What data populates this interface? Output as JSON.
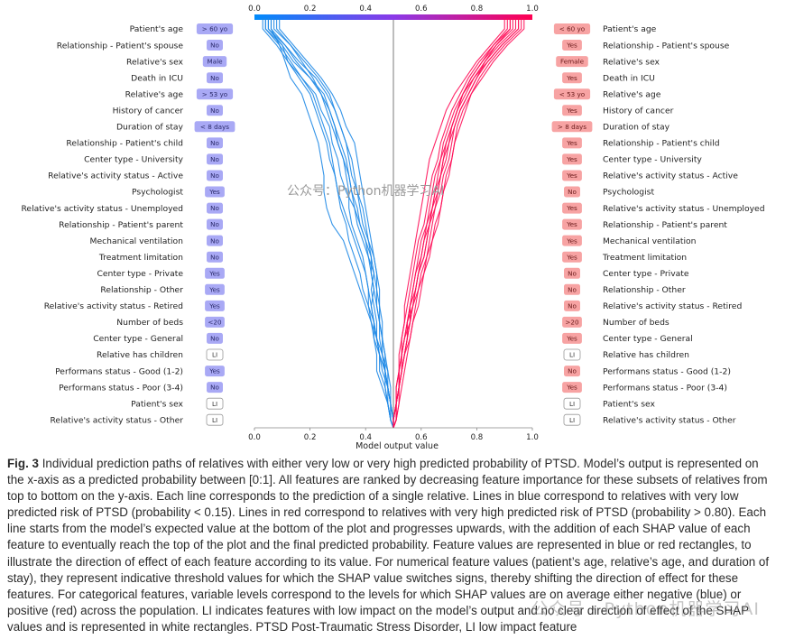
{
  "figure": {
    "axis": {
      "top_ticks": [
        "0.0",
        "0.2",
        "0.4",
        "0.6",
        "0.8",
        "1.0"
      ],
      "bottom_ticks": [
        "0.0",
        "0.2",
        "0.4",
        "0.6",
        "0.8",
        "1.0"
      ],
      "xlabel": "Model output value",
      "range": [
        0,
        1
      ],
      "base_value": 0.5
    },
    "colors": {
      "blue_line": "#1e88e5",
      "red_line": "#ff0d57",
      "blue_badge": "#a9a9f5",
      "red_badge": "#f7a3a3",
      "white_badge_border": "#999999",
      "center_line": "#999999"
    },
    "features": [
      {
        "left_label": "Patient's age",
        "left_value": "> 60 yo",
        "left_color": "blue",
        "right_value": "< 60 yo",
        "right_color": "red",
        "right_label": "Patient's age"
      },
      {
        "left_label": "Relationship - Patient's spouse",
        "left_value": "No",
        "left_color": "blue",
        "right_value": "Yes",
        "right_color": "red",
        "right_label": "Relationship - Patient's spouse"
      },
      {
        "left_label": "Relative's sex",
        "left_value": "Male",
        "left_color": "blue",
        "right_value": "Female",
        "right_color": "red",
        "right_label": "Relative's sex"
      },
      {
        "left_label": "Death in ICU",
        "left_value": "No",
        "left_color": "blue",
        "right_value": "Yes",
        "right_color": "red",
        "right_label": "Death in ICU"
      },
      {
        "left_label": "Relative's age",
        "left_value": "> 53 yo",
        "left_color": "blue",
        "right_value": "< 53 yo",
        "right_color": "red",
        "right_label": "Relative's age"
      },
      {
        "left_label": "History of cancer",
        "left_value": "No",
        "left_color": "blue",
        "right_value": "Yes",
        "right_color": "red",
        "right_label": "History of cancer"
      },
      {
        "left_label": "Duration of stay",
        "left_value": "< 8 days",
        "left_color": "blue",
        "right_value": "> 8 days",
        "right_color": "red",
        "right_label": "Duration of stay"
      },
      {
        "left_label": "Relationship - Patient's child",
        "left_value": "No",
        "left_color": "blue",
        "right_value": "Yes",
        "right_color": "red",
        "right_label": "Relationship - Patient's child"
      },
      {
        "left_label": "Center type - University",
        "left_value": "No",
        "left_color": "blue",
        "right_value": "Yes",
        "right_color": "red",
        "right_label": "Center type - University"
      },
      {
        "left_label": "Relative's activity status - Active",
        "left_value": "No",
        "left_color": "blue",
        "right_value": "Yes",
        "right_color": "red",
        "right_label": "Relative's activity status - Active"
      },
      {
        "left_label": "Psychologist",
        "left_value": "Yes",
        "left_color": "blue",
        "right_value": "No",
        "right_color": "red",
        "right_label": "Psychologist"
      },
      {
        "left_label": "Relative's activity status - Unemployed",
        "left_value": "No",
        "left_color": "blue",
        "right_value": "Yes",
        "right_color": "red",
        "right_label": "Relative's activity status - Unemployed"
      },
      {
        "left_label": "Relationship - Patient's parent",
        "left_value": "No",
        "left_color": "blue",
        "right_value": "Yes",
        "right_color": "red",
        "right_label": "Relationship - Patient's parent"
      },
      {
        "left_label": "Mechanical ventilation",
        "left_value": "No",
        "left_color": "blue",
        "right_value": "Yes",
        "right_color": "red",
        "right_label": "Mechanical ventilation"
      },
      {
        "left_label": "Treatment limitation",
        "left_value": "No",
        "left_color": "blue",
        "right_value": "Yes",
        "right_color": "red",
        "right_label": "Treatment limitation"
      },
      {
        "left_label": "Center type - Private",
        "left_value": "Yes",
        "left_color": "blue",
        "right_value": "No",
        "right_color": "red",
        "right_label": "Center type - Private"
      },
      {
        "left_label": "Relationship - Other",
        "left_value": "Yes",
        "left_color": "blue",
        "right_value": "No",
        "right_color": "red",
        "right_label": "Relationship - Other"
      },
      {
        "left_label": "Relative's activity status - Retired",
        "left_value": "Yes",
        "left_color": "blue",
        "right_value": "No",
        "right_color": "red",
        "right_label": "Relative's activity status - Retired"
      },
      {
        "left_label": "Number of beds",
        "left_value": "<20",
        "left_color": "blue",
        "right_value": ">20",
        "right_color": "red",
        "right_label": "Number of beds"
      },
      {
        "left_label": "Center type - General",
        "left_value": "No",
        "left_color": "blue",
        "right_value": "Yes",
        "right_color": "red",
        "right_label": "Center type - General"
      },
      {
        "left_label": "Relative has children",
        "left_value": "LI",
        "left_color": "white",
        "right_value": "LI",
        "right_color": "white",
        "right_label": "Relative has children"
      },
      {
        "left_label": "Performans status - Good (1-2)",
        "left_value": "Yes",
        "left_color": "blue",
        "right_value": "No",
        "right_color": "red",
        "right_label": "Performans status - Good (1-2)"
      },
      {
        "left_label": "Performans status - Poor (3-4)",
        "left_value": "No",
        "left_color": "blue",
        "right_value": "Yes",
        "right_color": "red",
        "right_label": "Performans status - Poor (3-4)"
      },
      {
        "left_label": "Patient's sex",
        "left_value": "LI",
        "left_color": "white",
        "right_value": "LI",
        "right_color": "white",
        "right_label": "Patient's sex"
      },
      {
        "left_label": "Relative's activity status - Other",
        "left_value": "LI",
        "left_color": "white",
        "right_value": "LI",
        "right_color": "white",
        "right_label": "Relative's activity status - Other"
      }
    ],
    "watermark": "公众号：Python机器学习AI"
  },
  "chart_data": {
    "type": "line",
    "xlabel": "Model output value",
    "xlim": [
      0,
      1
    ],
    "base_value": 0.5,
    "y_order": "bottom-to-top",
    "note_feature_order": "paths start at the base value below the last feature and progress upward through the features list (last to first)",
    "series": [
      {
        "color": "blue",
        "values": [
          0.5,
          0.49,
          0.48,
          0.47,
          0.45,
          0.45,
          0.44,
          0.44,
          0.43,
          0.42,
          0.43,
          0.41,
          0.4,
          0.38,
          0.37,
          0.35,
          0.34,
          0.33,
          0.31,
          0.29,
          0.27,
          0.25,
          0.2,
          0.14,
          0.1,
          0.04
        ]
      },
      {
        "color": "blue",
        "values": [
          0.5,
          0.5,
          0.49,
          0.48,
          0.47,
          0.47,
          0.46,
          0.45,
          0.45,
          0.44,
          0.44,
          0.43,
          0.41,
          0.39,
          0.38,
          0.37,
          0.36,
          0.35,
          0.33,
          0.31,
          0.29,
          0.26,
          0.22,
          0.16,
          0.11,
          0.05
        ]
      },
      {
        "color": "blue",
        "values": [
          0.5,
          0.49,
          0.48,
          0.46,
          0.44,
          0.44,
          0.43,
          0.43,
          0.42,
          0.43,
          0.42,
          0.42,
          0.4,
          0.38,
          0.36,
          0.33,
          0.31,
          0.3,
          0.28,
          0.27,
          0.24,
          0.22,
          0.17,
          0.12,
          0.08,
          0.03
        ]
      },
      {
        "color": "blue",
        "values": [
          0.5,
          0.5,
          0.49,
          0.49,
          0.48,
          0.46,
          0.44,
          0.42,
          0.4,
          0.38,
          0.36,
          0.34,
          0.32,
          0.28,
          0.26,
          0.25,
          0.25,
          0.24,
          0.23,
          0.21,
          0.19,
          0.17,
          0.13,
          0.11,
          0.09,
          0.06
        ]
      },
      {
        "color": "blue",
        "values": [
          0.5,
          0.49,
          0.48,
          0.48,
          0.47,
          0.45,
          0.43,
          0.42,
          0.41,
          0.41,
          0.4,
          0.39,
          0.37,
          0.35,
          0.34,
          0.34,
          0.33,
          0.32,
          0.3,
          0.29,
          0.27,
          0.24,
          0.2,
          0.15,
          0.11,
          0.06
        ]
      },
      {
        "color": "blue",
        "values": [
          0.5,
          0.49,
          0.49,
          0.48,
          0.47,
          0.46,
          0.46,
          0.45,
          0.44,
          0.44,
          0.43,
          0.42,
          0.41,
          0.4,
          0.39,
          0.37,
          0.35,
          0.34,
          0.33,
          0.31,
          0.29,
          0.27,
          0.23,
          0.18,
          0.13,
          0.07
        ]
      },
      {
        "color": "blue",
        "values": [
          0.5,
          0.5,
          0.49,
          0.48,
          0.46,
          0.45,
          0.44,
          0.43,
          0.42,
          0.41,
          0.4,
          0.38,
          0.36,
          0.34,
          0.32,
          0.3,
          0.29,
          0.28,
          0.27,
          0.25,
          0.23,
          0.21,
          0.17,
          0.13,
          0.09,
          0.04
        ]
      },
      {
        "color": "blue",
        "values": [
          0.5,
          0.49,
          0.48,
          0.47,
          0.47,
          0.46,
          0.45,
          0.45,
          0.44,
          0.43,
          0.42,
          0.41,
          0.39,
          0.37,
          0.36,
          0.35,
          0.34,
          0.32,
          0.3,
          0.28,
          0.26,
          0.24,
          0.21,
          0.17,
          0.13,
          0.08
        ]
      },
      {
        "color": "blue",
        "values": [
          0.5,
          0.49,
          0.49,
          0.48,
          0.47,
          0.45,
          0.44,
          0.43,
          0.41,
          0.39,
          0.38,
          0.36,
          0.34,
          0.33,
          0.31,
          0.3,
          0.29,
          0.27,
          0.26,
          0.24,
          0.22,
          0.2,
          0.16,
          0.12,
          0.1,
          0.05
        ]
      },
      {
        "color": "blue",
        "values": [
          0.5,
          0.5,
          0.49,
          0.48,
          0.48,
          0.47,
          0.46,
          0.46,
          0.45,
          0.45,
          0.44,
          0.43,
          0.42,
          0.41,
          0.4,
          0.39,
          0.38,
          0.37,
          0.36,
          0.33,
          0.31,
          0.28,
          0.24,
          0.19,
          0.14,
          0.09
        ]
      },
      {
        "color": "red",
        "values": [
          0.5,
          0.51,
          0.51,
          0.52,
          0.53,
          0.54,
          0.55,
          0.55,
          0.56,
          0.58,
          0.59,
          0.61,
          0.62,
          0.63,
          0.65,
          0.66,
          0.67,
          0.69,
          0.7,
          0.71,
          0.73,
          0.76,
          0.79,
          0.83,
          0.88,
          0.94
        ]
      },
      {
        "color": "red",
        "values": [
          0.5,
          0.5,
          0.51,
          0.52,
          0.52,
          0.53,
          0.54,
          0.55,
          0.57,
          0.59,
          0.6,
          0.62,
          0.63,
          0.64,
          0.65,
          0.67,
          0.68,
          0.7,
          0.71,
          0.72,
          0.74,
          0.77,
          0.8,
          0.84,
          0.89,
          0.95
        ]
      },
      {
        "color": "red",
        "values": [
          0.5,
          0.51,
          0.52,
          0.52,
          0.53,
          0.54,
          0.56,
          0.57,
          0.58,
          0.59,
          0.61,
          0.62,
          0.64,
          0.65,
          0.67,
          0.68,
          0.69,
          0.71,
          0.72,
          0.73,
          0.75,
          0.78,
          0.81,
          0.85,
          0.9,
          0.96
        ]
      },
      {
        "color": "red",
        "values": [
          0.5,
          0.5,
          0.51,
          0.51,
          0.52,
          0.53,
          0.53,
          0.54,
          0.55,
          0.56,
          0.57,
          0.58,
          0.59,
          0.61,
          0.62,
          0.63,
          0.64,
          0.66,
          0.67,
          0.69,
          0.71,
          0.74,
          0.77,
          0.81,
          0.86,
          0.92
        ]
      },
      {
        "color": "red",
        "values": [
          0.5,
          0.51,
          0.51,
          0.52,
          0.53,
          0.53,
          0.54,
          0.56,
          0.57,
          0.58,
          0.59,
          0.61,
          0.62,
          0.63,
          0.64,
          0.65,
          0.67,
          0.68,
          0.7,
          0.72,
          0.74,
          0.77,
          0.8,
          0.83,
          0.87,
          0.93
        ]
      },
      {
        "color": "red",
        "values": [
          0.5,
          0.5,
          0.51,
          0.52,
          0.53,
          0.54,
          0.55,
          0.56,
          0.56,
          0.57,
          0.58,
          0.6,
          0.61,
          0.62,
          0.64,
          0.66,
          0.67,
          0.68,
          0.69,
          0.71,
          0.73,
          0.75,
          0.78,
          0.82,
          0.86,
          0.91
        ]
      },
      {
        "color": "red",
        "values": [
          0.5,
          0.51,
          0.52,
          0.53,
          0.54,
          0.55,
          0.56,
          0.57,
          0.59,
          0.6,
          0.61,
          0.63,
          0.64,
          0.66,
          0.67,
          0.68,
          0.7,
          0.71,
          0.72,
          0.74,
          0.76,
          0.78,
          0.82,
          0.86,
          0.91,
          0.97
        ]
      },
      {
        "color": "red",
        "values": [
          0.5,
          0.5,
          0.51,
          0.51,
          0.52,
          0.52,
          0.53,
          0.54,
          0.54,
          0.55,
          0.56,
          0.57,
          0.58,
          0.59,
          0.6,
          0.61,
          0.62,
          0.63,
          0.65,
          0.67,
          0.69,
          0.72,
          0.76,
          0.8,
          0.85,
          0.9
        ]
      },
      {
        "color": "red",
        "values": [
          0.5,
          0.51,
          0.51,
          0.52,
          0.53,
          0.54,
          0.55,
          0.56,
          0.57,
          0.58,
          0.59,
          0.6,
          0.61,
          0.63,
          0.64,
          0.65,
          0.66,
          0.67,
          0.69,
          0.71,
          0.73,
          0.75,
          0.79,
          0.84,
          0.89,
          0.95
        ]
      },
      {
        "color": "red",
        "values": [
          0.5,
          0.5,
          0.51,
          0.52,
          0.52,
          0.53,
          0.54,
          0.55,
          0.56,
          0.57,
          0.58,
          0.59,
          0.6,
          0.62,
          0.63,
          0.64,
          0.65,
          0.67,
          0.68,
          0.7,
          0.72,
          0.75,
          0.78,
          0.82,
          0.87,
          0.92
        ]
      }
    ]
  },
  "caption": {
    "fig_label": "Fig. 3",
    "text": "Individual prediction paths of relatives with either very low or very high predicted probability of PTSD. Model’s output is represented on the x-axis as a predicted probability between [0:1]. All features are ranked by decreasing feature importance for these subsets of relatives from top to bottom on the y-axis. Each line corresponds to the prediction of a single relative. Lines in blue correspond to relatives with very low predicted risk of PTSD (probability < 0.15). Lines in red correspond to relatives with very high predicted risk of PTSD (probability > 0.80). Each line starts from the model’s expected value at the bottom of the plot and progresses upwards, with the addition of each SHAP value of each feature to eventually reach the top of the plot and the final predicted probability. Feature values are represented in blue or red rectangles, to illustrate the direction of effect of each feature according to its value. For numerical feature values (patient’s age, relative’s age, and duration of stay), they represent indicative threshold values for which the SHAP value switches signs, thereby shifting the direction of effect for these features. For categorical features, variable levels correspond to the levels for which SHAP values are on average either negative (blue) or positive (red) across the population. LI indicates features with low impact on the model’s output and no clear direction of effect of the SHAP values and is represented in white rectangles. PTSD Post-Traumatic Stress Disorder, LI low impact feature"
  },
  "corner_watermark": "公众号 · Python机器学习AI"
}
